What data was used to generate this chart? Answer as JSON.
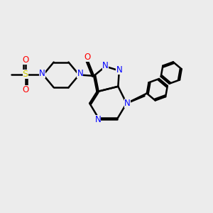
{
  "bg_color": "#ececec",
  "bond_color": "#000000",
  "bond_width": 1.8,
  "colors": {
    "N": "#0000ff",
    "O": "#ff0000",
    "S": "#cccc00",
    "C": "#000000"
  },
  "scale": 1.0
}
